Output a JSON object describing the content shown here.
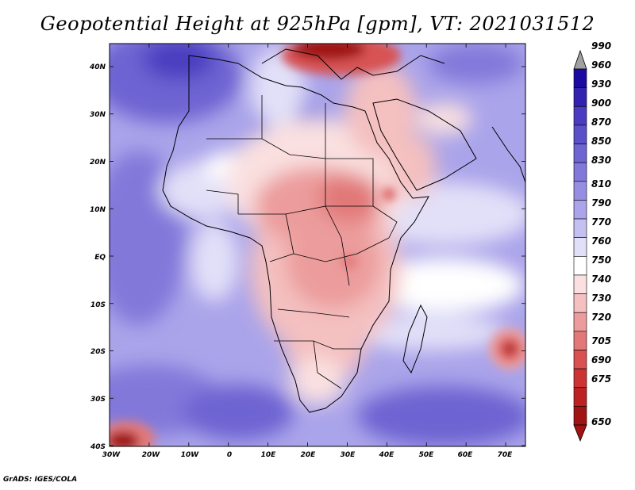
{
  "title": "Geopotential Height at 925hPa [gpm], VT: 2021031512",
  "credit": "GrADS: IGES/COLA",
  "lat_labels": [
    "40N",
    "30N",
    "20N",
    "10N",
    "EQ",
    "10S",
    "20S",
    "30S",
    "40S"
  ],
  "lon_labels": [
    "30W",
    "20W",
    "10W",
    "0",
    "10E",
    "20E",
    "30E",
    "40E",
    "50E",
    "60E",
    "70E"
  ],
  "colorbar": {
    "levels": [
      "990",
      "960",
      "930",
      "900",
      "870",
      "850",
      "830",
      "810",
      "790",
      "770",
      "760",
      "750",
      "740",
      "730",
      "720",
      "705",
      "690",
      "675",
      "650"
    ],
    "colors": [
      "#1c0aa0",
      "#3222b0",
      "#4a3cc0",
      "#5c50c8",
      "#6e64d2",
      "#8278da",
      "#968ee2",
      "#aaa4ea",
      "#c4c0f2",
      "#e2e0f8",
      "#ffffff",
      "#fae0e0",
      "#f4c0c0",
      "#ec9c9c",
      "#e27878",
      "#d85252",
      "#cc3434",
      "#bc2222",
      "#a01414"
    ],
    "top_arrow_color": "#a0a0a0",
    "bottom_arrow_color": "#a01414"
  }
}
